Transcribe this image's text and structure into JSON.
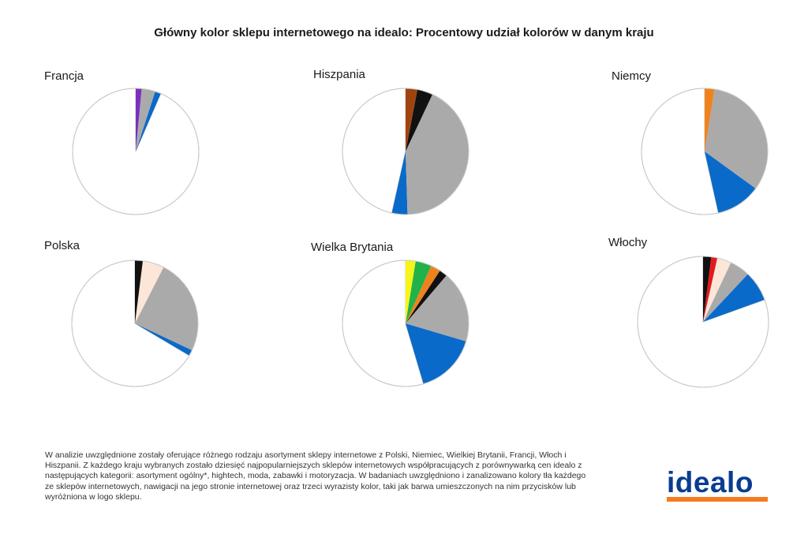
{
  "title": "Główny kolor sklepu internetowego na idealo: Procentowy udział kolorów w danym kraju",
  "colors": {
    "white": "#ffffff",
    "blue": "#0a6ac9",
    "grey": "#aaaaaa",
    "purple": "#7b2fbe",
    "black": "#111111",
    "brown": "#a0440f",
    "orange": "#f0821e",
    "cream": "#fbe6d8",
    "green": "#21b24a",
    "yellow": "#f5f51a",
    "red": "#e5191c"
  },
  "chart_data": [
    {
      "type": "pie",
      "title": "Francja",
      "slices": [
        {
          "color": "white",
          "value": 93.5
        },
        {
          "color": "blue",
          "value": 1.5
        },
        {
          "color": "grey",
          "value": 3.5
        },
        {
          "color": "purple",
          "value": 1.5
        }
      ]
    },
    {
      "type": "pie",
      "title": "Hiszpania",
      "slices": [
        {
          "color": "white",
          "value": 46.5
        },
        {
          "color": "blue",
          "value": 4
        },
        {
          "color": "grey",
          "value": 42.5
        },
        {
          "color": "black",
          "value": 4
        },
        {
          "color": "brown",
          "value": 3
        }
      ]
    },
    {
      "type": "pie",
      "title": "Niemcy",
      "slices": [
        {
          "color": "white",
          "value": 53.5
        },
        {
          "color": "blue",
          "value": 11.5
        },
        {
          "color": "grey",
          "value": 32.5
        },
        {
          "color": "orange",
          "value": 2.5
        }
      ]
    },
    {
      "type": "pie",
      "title": "Polska",
      "slices": [
        {
          "color": "white",
          "value": 66.5
        },
        {
          "color": "blue",
          "value": 1.5
        },
        {
          "color": "grey",
          "value": 24.5
        },
        {
          "color": "cream",
          "value": 5.5
        },
        {
          "color": "black",
          "value": 2
        }
      ]
    },
    {
      "type": "pie",
      "title": "Wielka Brytania",
      "slices": [
        {
          "color": "white",
          "value": 53.5
        },
        {
          "color": "blue",
          "value": 15.5
        },
        {
          "color": "grey",
          "value": 18
        },
        {
          "color": "black",
          "value": 2
        },
        {
          "color": "orange",
          "value": 2.5
        },
        {
          "color": "green",
          "value": 4
        },
        {
          "color": "yellow",
          "value": 2.5
        }
      ]
    },
    {
      "type": "pie",
      "title": "Włochy",
      "slices": [
        {
          "color": "white",
          "value": 80.5
        },
        {
          "color": "blue",
          "value": 7.5
        },
        {
          "color": "grey",
          "value": 5
        },
        {
          "color": "cream",
          "value": 3.5
        },
        {
          "color": "red",
          "value": 1.5
        },
        {
          "color": "black",
          "value": 2
        }
      ]
    }
  ],
  "note": "W analizie uwzględnione zostały oferujące różnego rodzaju asortyment sklepy internetowe z Polski, Niemiec, Wielkiej Brytanii, Francji, Włoch i Hiszpanii. Z każdego kraju wybranych zostało dziesięć najpopularniejszych sklepów internetowych współpracujących z porównywarką cen idealo z następujących kategorii: asortyment ogólny*, hightech, moda, zabawki i motoryzacja. W badaniach uwzględniono i zanalizowano kolory tła każdego ze sklepów internetowych, nawigacji na jego stronie internetowej oraz trzeci wyrazisty kolor, taki jak barwa umieszczonych na nim przycisków lub wyróżniona w logo sklepu.",
  "logo": {
    "text": "idealo"
  }
}
